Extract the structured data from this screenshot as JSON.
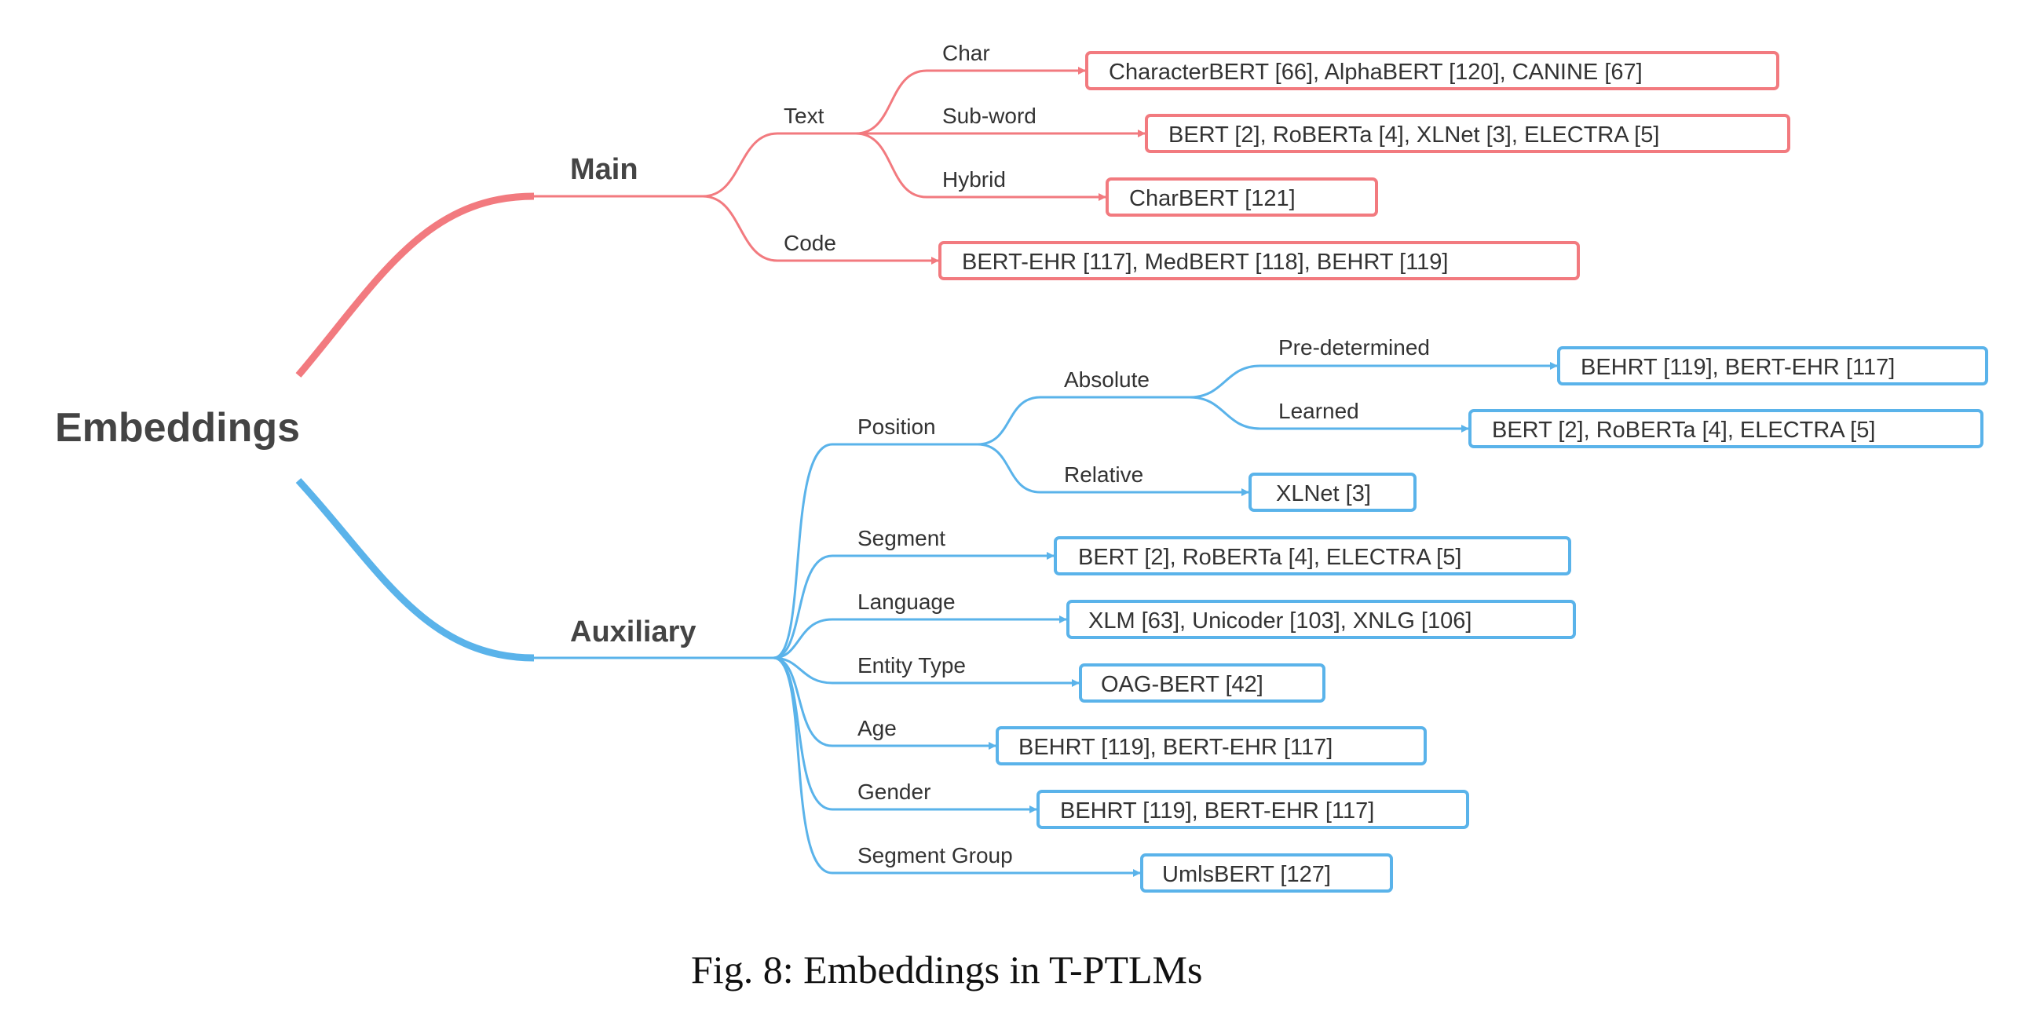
{
  "root": {
    "label": "Embeddings"
  },
  "colors": {
    "main": "#f27a7f",
    "auxiliary": "#5ab3ea"
  },
  "main": {
    "label": "Main",
    "text": {
      "label": "Text",
      "char": {
        "label": "Char",
        "models": "CharacterBERT [66], AlphaBERT [120], CANINE [67]"
      },
      "subword": {
        "label": "Sub-word",
        "models": "BERT [2], RoBERTa [4], XLNet [3], ELECTRA [5]"
      },
      "hybrid": {
        "label": "Hybrid",
        "models": "CharBERT [121]"
      }
    },
    "code": {
      "label": "Code",
      "models": "BERT-EHR [117], MedBERT [118], BEHRT [119]"
    }
  },
  "auxiliary": {
    "label": "Auxiliary",
    "position": {
      "label": "Position",
      "absolute": {
        "label": "Absolute",
        "predetermined": {
          "label": "Pre-determined",
          "models": "BEHRT [119], BERT-EHR [117]"
        },
        "learned": {
          "label": "Learned",
          "models": "BERT [2], RoBERTa [4], ELECTRA [5]"
        }
      },
      "relative": {
        "label": "Relative",
        "models": "XLNet [3]"
      }
    },
    "segment": {
      "label": "Segment",
      "models": "BERT [2], RoBERTa [4], ELECTRA [5]"
    },
    "language": {
      "label": "Language",
      "models": "XLM [63], Unicoder [103], XNLG [106]"
    },
    "entity_type": {
      "label": "Entity Type",
      "models": "OAG-BERT [42]"
    },
    "age": {
      "label": "Age",
      "models": "BEHRT [119], BERT-EHR [117]"
    },
    "gender": {
      "label": "Gender",
      "models": "BEHRT [119], BERT-EHR [117]"
    },
    "segment_group": {
      "label": "Segment Group",
      "models": "UmlsBERT [127]"
    }
  },
  "caption": "Fig. 8:  Embeddings in T-PTLMs"
}
